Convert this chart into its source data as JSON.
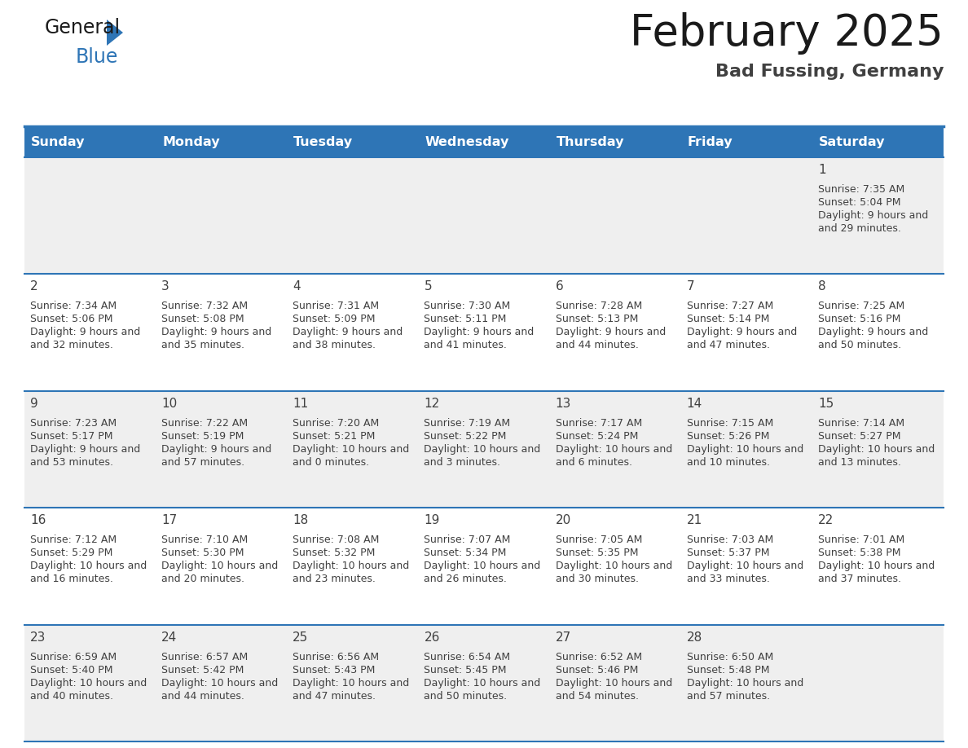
{
  "title": "February 2025",
  "subtitle": "Bad Fussing, Germany",
  "days_of_week": [
    "Sunday",
    "Monday",
    "Tuesday",
    "Wednesday",
    "Thursday",
    "Friday",
    "Saturday"
  ],
  "header_bg": "#2E75B6",
  "header_text": "#FFFFFF",
  "cell_bg_white": "#FFFFFF",
  "cell_bg_gray": "#EFEFEF",
  "border_color": "#2E75B6",
  "text_color": "#404040",
  "day_num_color": "#404040",
  "logo_general_color": "#1a1a1a",
  "logo_blue_color": "#2E75B6",
  "logo_triangle_color": "#2E75B6",
  "title_color": "#1a1a1a",
  "subtitle_color": "#404040",
  "calendar_data": {
    "1": {
      "sunrise": "7:35 AM",
      "sunset": "5:04 PM",
      "daylight": "9 hours and 29 minutes"
    },
    "2": {
      "sunrise": "7:34 AM",
      "sunset": "5:06 PM",
      "daylight": "9 hours and 32 minutes"
    },
    "3": {
      "sunrise": "7:32 AM",
      "sunset": "5:08 PM",
      "daylight": "9 hours and 35 minutes"
    },
    "4": {
      "sunrise": "7:31 AM",
      "sunset": "5:09 PM",
      "daylight": "9 hours and 38 minutes"
    },
    "5": {
      "sunrise": "7:30 AM",
      "sunset": "5:11 PM",
      "daylight": "9 hours and 41 minutes"
    },
    "6": {
      "sunrise": "7:28 AM",
      "sunset": "5:13 PM",
      "daylight": "9 hours and 44 minutes"
    },
    "7": {
      "sunrise": "7:27 AM",
      "sunset": "5:14 PM",
      "daylight": "9 hours and 47 minutes"
    },
    "8": {
      "sunrise": "7:25 AM",
      "sunset": "5:16 PM",
      "daylight": "9 hours and 50 minutes"
    },
    "9": {
      "sunrise": "7:23 AM",
      "sunset": "5:17 PM",
      "daylight": "9 hours and 53 minutes"
    },
    "10": {
      "sunrise": "7:22 AM",
      "sunset": "5:19 PM",
      "daylight": "9 hours and 57 minutes"
    },
    "11": {
      "sunrise": "7:20 AM",
      "sunset": "5:21 PM",
      "daylight": "10 hours and 0 minutes"
    },
    "12": {
      "sunrise": "7:19 AM",
      "sunset": "5:22 PM",
      "daylight": "10 hours and 3 minutes"
    },
    "13": {
      "sunrise": "7:17 AM",
      "sunset": "5:24 PM",
      "daylight": "10 hours and 6 minutes"
    },
    "14": {
      "sunrise": "7:15 AM",
      "sunset": "5:26 PM",
      "daylight": "10 hours and 10 minutes"
    },
    "15": {
      "sunrise": "7:14 AM",
      "sunset": "5:27 PM",
      "daylight": "10 hours and 13 minutes"
    },
    "16": {
      "sunrise": "7:12 AM",
      "sunset": "5:29 PM",
      "daylight": "10 hours and 16 minutes"
    },
    "17": {
      "sunrise": "7:10 AM",
      "sunset": "5:30 PM",
      "daylight": "10 hours and 20 minutes"
    },
    "18": {
      "sunrise": "7:08 AM",
      "sunset": "5:32 PM",
      "daylight": "10 hours and 23 minutes"
    },
    "19": {
      "sunrise": "7:07 AM",
      "sunset": "5:34 PM",
      "daylight": "10 hours and 26 minutes"
    },
    "20": {
      "sunrise": "7:05 AM",
      "sunset": "5:35 PM",
      "daylight": "10 hours and 30 minutes"
    },
    "21": {
      "sunrise": "7:03 AM",
      "sunset": "5:37 PM",
      "daylight": "10 hours and 33 minutes"
    },
    "22": {
      "sunrise": "7:01 AM",
      "sunset": "5:38 PM",
      "daylight": "10 hours and 37 minutes"
    },
    "23": {
      "sunrise": "6:59 AM",
      "sunset": "5:40 PM",
      "daylight": "10 hours and 40 minutes"
    },
    "24": {
      "sunrise": "6:57 AM",
      "sunset": "5:42 PM",
      "daylight": "10 hours and 44 minutes"
    },
    "25": {
      "sunrise": "6:56 AM",
      "sunset": "5:43 PM",
      "daylight": "10 hours and 47 minutes"
    },
    "26": {
      "sunrise": "6:54 AM",
      "sunset": "5:45 PM",
      "daylight": "10 hours and 50 minutes"
    },
    "27": {
      "sunrise": "6:52 AM",
      "sunset": "5:46 PM",
      "daylight": "10 hours and 54 minutes"
    },
    "28": {
      "sunrise": "6:50 AM",
      "sunset": "5:48 PM",
      "daylight": "10 hours and 57 minutes"
    }
  }
}
